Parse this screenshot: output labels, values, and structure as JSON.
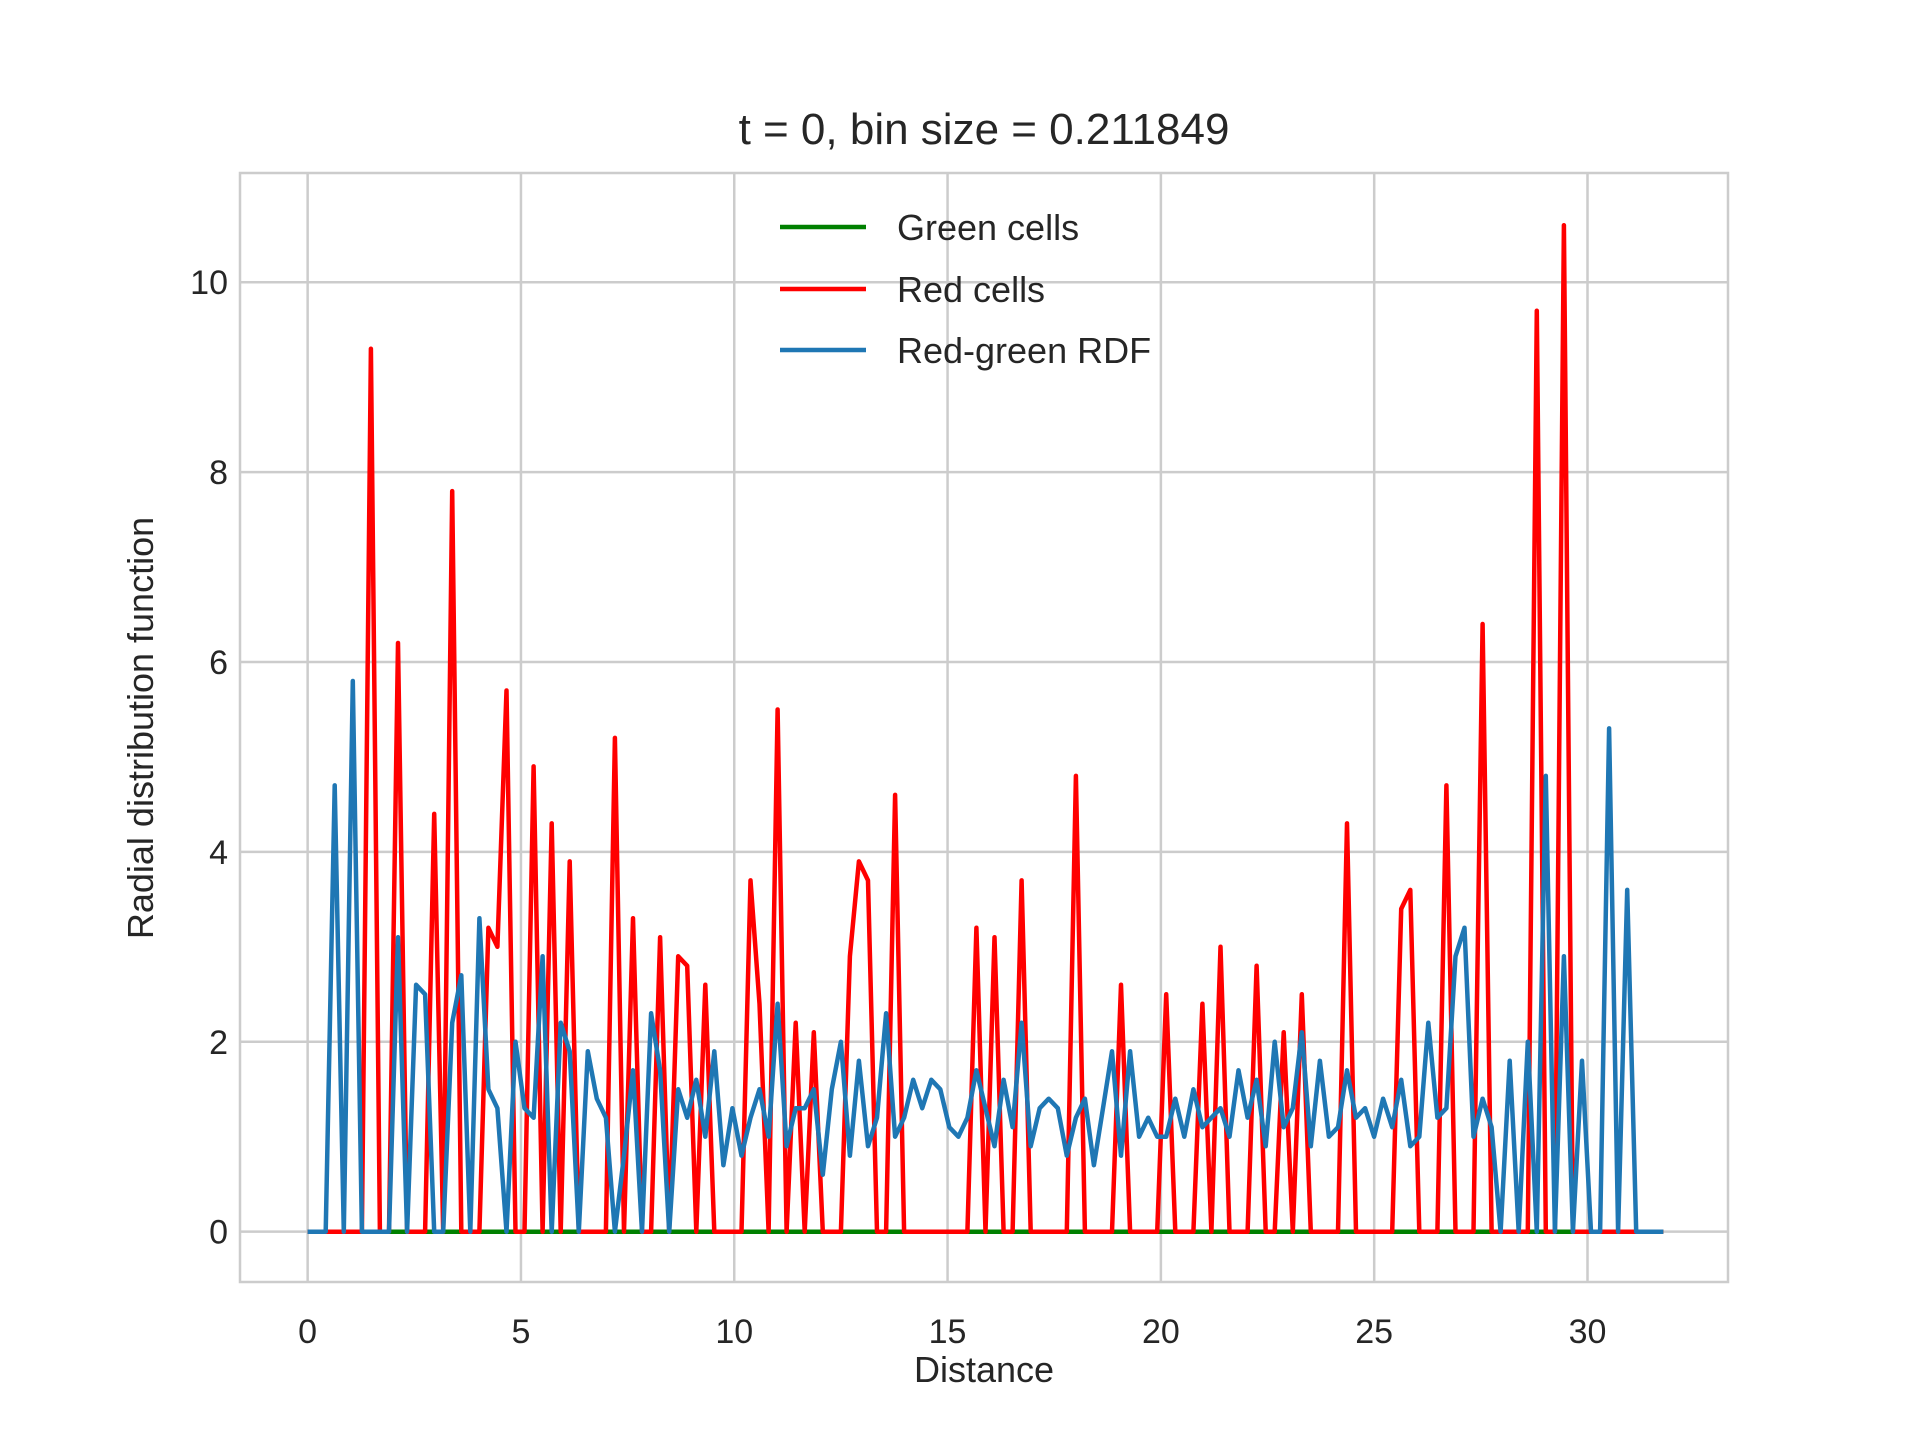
{
  "chart_data": {
    "type": "line",
    "title": "t = 0, bin size = 0.211849",
    "xlabel": "Distance",
    "ylabel": "Radial distribution function",
    "xlim": [
      -1.5853,
      33.2933
    ],
    "ylim": [
      -0.53,
      11.15
    ],
    "xticks": [
      0,
      5,
      10,
      15,
      20,
      25,
      30
    ],
    "yticks": [
      0,
      2,
      4,
      6,
      8,
      10
    ],
    "grid": true,
    "legend": "upper center",
    "bin_size": 0.211849,
    "n_bins": 151,
    "series": [
      {
        "name": "Green cells",
        "color": "#008000",
        "values": [
          0,
          0,
          0,
          0,
          0,
          0,
          0,
          0,
          0,
          0,
          0,
          0,
          0,
          0,
          0,
          0,
          0,
          0,
          0,
          0,
          0,
          0,
          0,
          0,
          0,
          0,
          0,
          0,
          0,
          0,
          0,
          0,
          0,
          0,
          0,
          0,
          0,
          0,
          0,
          0,
          0,
          0,
          0,
          0,
          0,
          0,
          0,
          0,
          0,
          0,
          0,
          0,
          0,
          0,
          0,
          0,
          0,
          0,
          0,
          0,
          0,
          0,
          0,
          0,
          0,
          0,
          0,
          0,
          0,
          0,
          0,
          0,
          0,
          0,
          0,
          0,
          0,
          0,
          0,
          0,
          0,
          0,
          0,
          0,
          0,
          0,
          0,
          0,
          0,
          0,
          0,
          0,
          0,
          0,
          0,
          0,
          0,
          0,
          0,
          0,
          0,
          0,
          0,
          0,
          0,
          0,
          0,
          0,
          0,
          0,
          0,
          0,
          0,
          0,
          0,
          0,
          0,
          0,
          0,
          0,
          0,
          0,
          0,
          0,
          0,
          0,
          0,
          0,
          0,
          0,
          0,
          0,
          0,
          0,
          0,
          0,
          0,
          0,
          0,
          0,
          0,
          0,
          0,
          0,
          0,
          0,
          0,
          0,
          0,
          0,
          0
        ]
      },
      {
        "name": "Red cells",
        "color": "#ff0000",
        "values": [
          0,
          0,
          0,
          0,
          0,
          0,
          0,
          9.3,
          0,
          0,
          6.2,
          0,
          0,
          0,
          4.4,
          0,
          7.8,
          0,
          0,
          0,
          3.2,
          3.0,
          5.7,
          0,
          0,
          4.9,
          0,
          4.3,
          0,
          3.9,
          0,
          0,
          0,
          0,
          5.2,
          0,
          3.3,
          0,
          0,
          3.1,
          0,
          2.9,
          2.8,
          0,
          2.6,
          0,
          0,
          0,
          0,
          3.7,
          2.4,
          0,
          5.5,
          0,
          2.2,
          0,
          2.1,
          0,
          0,
          0,
          2.9,
          3.9,
          3.7,
          0,
          0,
          4.6,
          0,
          0,
          0,
          0,
          0,
          0,
          0,
          0,
          3.2,
          0,
          3.1,
          0,
          0,
          3.7,
          0,
          0,
          0,
          0,
          0,
          4.8,
          0,
          0,
          0,
          0,
          2.6,
          0,
          0,
          0,
          0,
          2.5,
          0,
          0,
          0,
          2.4,
          0,
          3.0,
          0,
          0,
          0,
          2.8,
          0,
          0,
          2.1,
          0,
          2.5,
          0,
          0,
          0,
          0,
          4.3,
          0,
          0,
          0,
          0,
          0,
          3.4,
          3.6,
          0,
          0,
          0,
          4.7,
          0,
          0,
          0,
          6.4,
          0,
          0,
          0,
          0,
          0,
          9.7,
          0,
          0,
          10.6,
          0,
          0,
          0,
          0,
          0,
          0,
          0,
          0,
          0,
          0,
          0
        ]
      },
      {
        "name": "Red-green RDF",
        "color": "#1f77b4",
        "values": [
          0,
          0,
          0,
          4.7,
          0,
          5.8,
          0,
          0,
          0,
          0,
          3.1,
          0,
          2.6,
          2.5,
          0,
          0,
          2.2,
          2.7,
          0,
          3.3,
          1.5,
          1.3,
          0,
          2.0,
          1.3,
          1.2,
          2.9,
          0,
          2.2,
          1.9,
          0,
          1.9,
          1.4,
          1.2,
          0,
          0.8,
          1.7,
          0,
          2.3,
          1.7,
          0,
          1.5,
          1.2,
          1.6,
          1.0,
          1.9,
          0.7,
          1.3,
          0.8,
          1.2,
          1.5,
          1.0,
          2.4,
          0.9,
          1.3,
          1.3,
          1.5,
          0.6,
          1.5,
          2.0,
          0.8,
          1.8,
          0.9,
          1.2,
          2.3,
          1.0,
          1.2,
          1.6,
          1.3,
          1.6,
          1.5,
          1.1,
          1.0,
          1.2,
          1.7,
          1.3,
          0.9,
          1.6,
          1.1,
          2.2,
          0.9,
          1.3,
          1.4,
          1.3,
          0.8,
          1.2,
          1.4,
          0.7,
          1.3,
          1.9,
          0.8,
          1.9,
          1.0,
          1.2,
          1.0,
          1.0,
          1.4,
          1.0,
          1.5,
          1.1,
          1.2,
          1.3,
          1.0,
          1.7,
          1.2,
          1.6,
          0.9,
          2.0,
          1.1,
          1.3,
          2.1,
          0.9,
          1.8,
          1.0,
          1.1,
          1.7,
          1.2,
          1.3,
          1.0,
          1.4,
          1.1,
          1.6,
          0.9,
          1.0,
          2.2,
          1.2,
          1.3,
          2.9,
          3.2,
          1.0,
          1.4,
          1.1,
          0,
          1.8,
          0,
          2.0,
          0,
          4.8,
          0,
          2.9,
          0,
          1.8,
          0,
          0,
          5.3,
          0,
          3.6,
          0,
          0,
          0,
          0
        ]
      }
    ]
  }
}
